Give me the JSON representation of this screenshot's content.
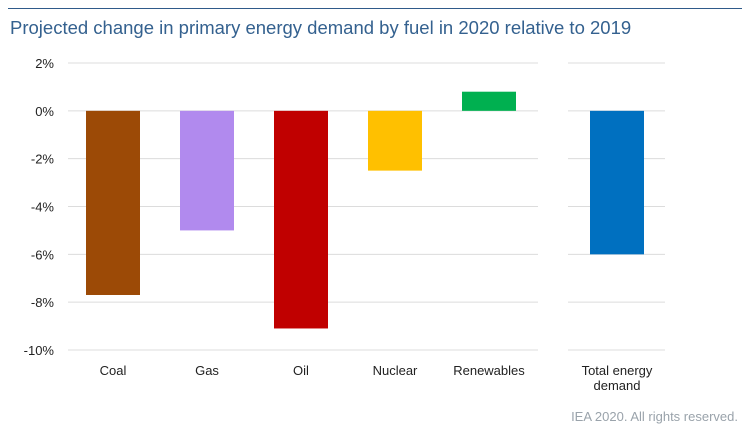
{
  "title": "Projected change in primary energy demand by fuel in 2020 relative to 2019",
  "footer": "IEA 2020. All rights reserved.",
  "chart_data": {
    "type": "bar",
    "title": "Projected change in primary energy demand by fuel in 2020 relative to 2019",
    "xlabel": "",
    "ylabel": "",
    "ylim": [
      -10,
      2
    ],
    "grid": true,
    "legend": "none",
    "yticks": [
      "2%",
      "0%",
      "-2%",
      "-4%",
      "-6%",
      "-8%",
      "-10%"
    ],
    "ytick_values": [
      2,
      0,
      -2,
      -4,
      -6,
      -8,
      -10
    ],
    "panels": [
      {
        "categories": [
          "Coal",
          "Gas",
          "Oil",
          "Nuclear",
          "Renewables"
        ],
        "values": [
          -7.7,
          -5.0,
          -9.1,
          -2.5,
          0.8
        ],
        "colors": [
          "#9c4a06",
          "#b18aee",
          "#c00000",
          "#ffc000",
          "#00b050"
        ]
      },
      {
        "categories": [
          "Total energy demand"
        ],
        "category_lines": [
          [
            "Total energy",
            "demand"
          ]
        ],
        "values": [
          -6.0
        ],
        "colors": [
          "#0070c0"
        ]
      }
    ]
  }
}
